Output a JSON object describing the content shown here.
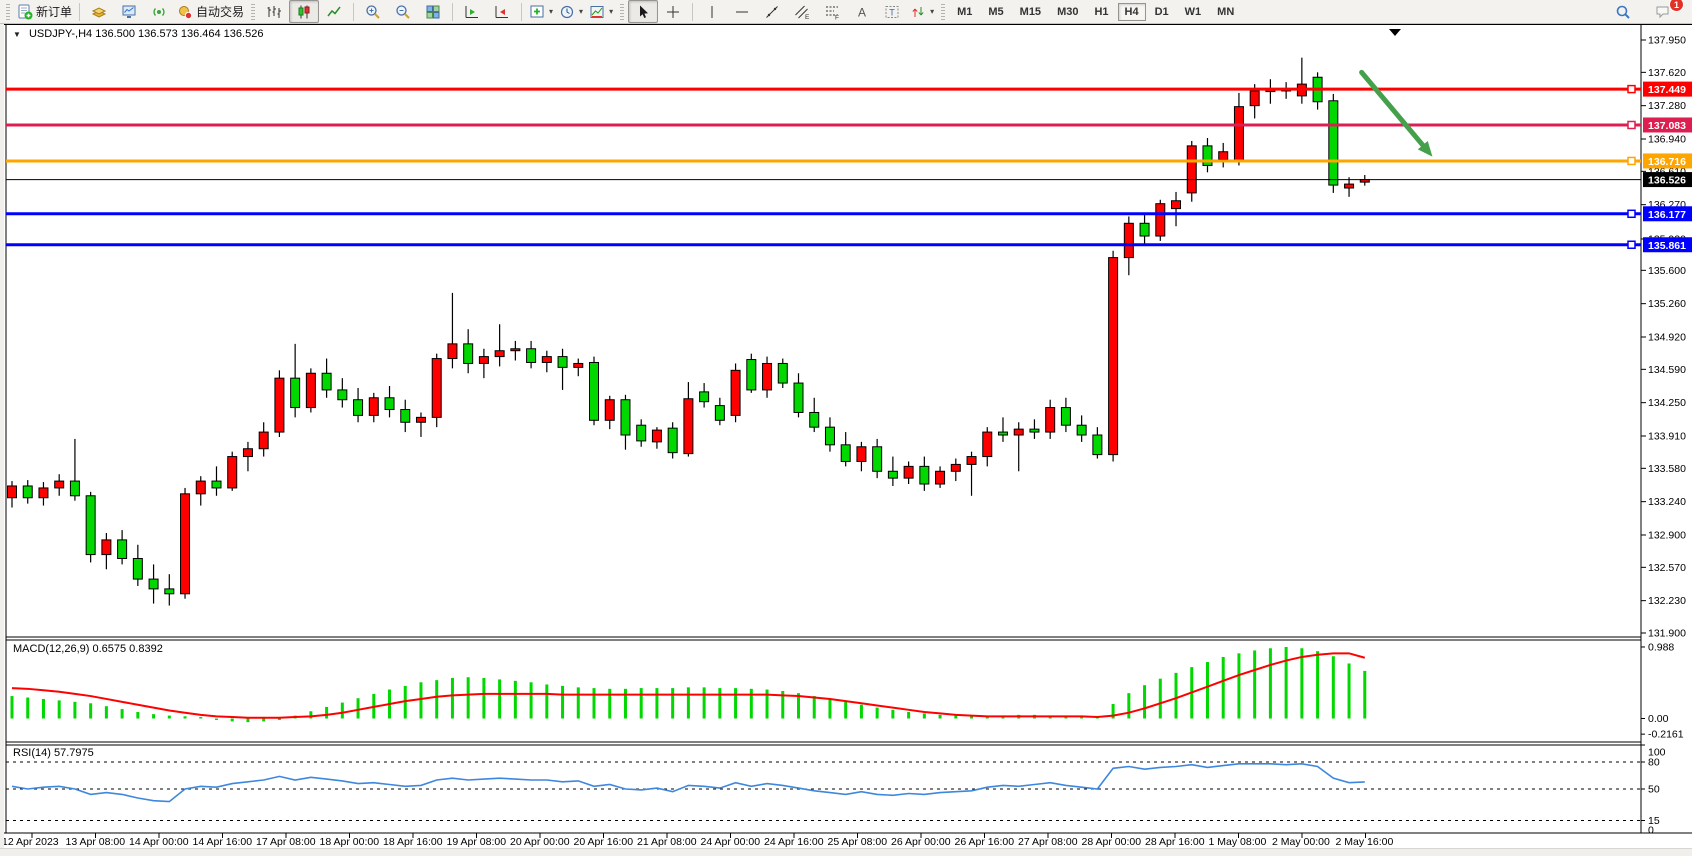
{
  "icons": {
    "collapse_caret": "▼",
    "dropdown_caret": "▾"
  },
  "toolbar": {
    "items": [
      {
        "type": "grip"
      },
      {
        "type": "btn",
        "name": "new-order-button",
        "icon": "new_order",
        "label": "新订单"
      },
      {
        "type": "sep"
      },
      {
        "type": "btn",
        "name": "chart-profiles-button",
        "icon": "gold_box"
      },
      {
        "type": "btn",
        "name": "market-watch-button",
        "icon": "market_watch"
      },
      {
        "type": "btn",
        "name": "signals-button",
        "icon": "signal"
      },
      {
        "type": "btn",
        "name": "autotrade-button",
        "icon": "autotrade",
        "label": "自动交易"
      },
      {
        "type": "grip"
      },
      {
        "type": "btn",
        "name": "bar-chart-button",
        "icon": "bar_chart"
      },
      {
        "type": "btn",
        "name": "candlestick-chart-button",
        "icon": "candles",
        "active": true
      },
      {
        "type": "btn",
        "name": "line-chart-button",
        "icon": "line_chart"
      },
      {
        "type": "sep"
      },
      {
        "type": "btn",
        "name": "zoom-in-button",
        "icon": "zoom_in"
      },
      {
        "type": "btn",
        "name": "zoom-out-button",
        "icon": "zoom_out"
      },
      {
        "type": "btn",
        "name": "tile-windows-button",
        "icon": "tiles"
      },
      {
        "type": "sep"
      },
      {
        "type": "btn",
        "name": "auto-scroll-button",
        "icon": "autoscroll"
      },
      {
        "type": "btn",
        "name": "chart-shift-button",
        "icon": "chart_shift"
      },
      {
        "type": "sep"
      },
      {
        "type": "btn",
        "name": "new-chart-button",
        "icon": "add_chart",
        "dd": true
      },
      {
        "type": "btn",
        "name": "periods-button",
        "icon": "clock",
        "dd": true
      },
      {
        "type": "btn",
        "name": "templates-button",
        "icon": "template",
        "dd": true
      },
      {
        "type": "grip"
      },
      {
        "type": "btn",
        "name": "cursor-button",
        "icon": "cursor",
        "active": true
      },
      {
        "type": "btn",
        "name": "crosshair-button",
        "icon": "crosshair"
      },
      {
        "type": "sep"
      },
      {
        "type": "btn",
        "name": "vertical-line-button",
        "icon": "vline"
      },
      {
        "type": "btn",
        "name": "horizontal-line-button",
        "icon": "hline"
      },
      {
        "type": "btn",
        "name": "trendline-button",
        "icon": "tline"
      },
      {
        "type": "btn",
        "name": "equidistant-channel-button",
        "icon": "channel"
      },
      {
        "type": "btn",
        "name": "fibonacci-button",
        "icon": "fibo"
      },
      {
        "type": "btn",
        "name": "text-button",
        "icon": "text_a"
      },
      {
        "type": "btn",
        "name": "text-label-button",
        "icon": "text_t"
      },
      {
        "type": "btn",
        "name": "arrows-button",
        "icon": "arrows",
        "dd": true
      },
      {
        "type": "grip"
      }
    ],
    "timeframes": {
      "items": [
        "M1",
        "M5",
        "M15",
        "M30",
        "H1",
        "H4",
        "D1",
        "W1",
        "MN"
      ],
      "active": "H4"
    },
    "notifications_badge": "1"
  },
  "chart": {
    "symbol_period": "USDJPY-,H4",
    "ohlc_text": "136.500 136.573 136.464 136.526",
    "shift_marker_visible": true,
    "hlines": [
      {
        "price": 137.449,
        "label": "137.449",
        "color": "#FF0000",
        "width": 3
      },
      {
        "price": 137.083,
        "label": "137.083",
        "color": "#DC1E50",
        "width": 3
      },
      {
        "price": 136.716,
        "label": "136.716",
        "color": "#FFA500",
        "width": 3
      },
      {
        "price": 136.526,
        "label": "136.526",
        "color": "#000000",
        "width": 1,
        "is_price_line": true
      },
      {
        "price": 136.177,
        "label": "136.177",
        "color": "#0000FF",
        "width": 3
      },
      {
        "price": 135.861,
        "label": "135.861",
        "color": "#0000FF",
        "width": 3
      }
    ],
    "annotations": [
      {
        "type": "arrow",
        "color": "#44A04A",
        "width": 5,
        "from": {
          "bar": 85.8,
          "price": 137.62
        },
        "to": {
          "bar": 90.3,
          "price": 136.76
        }
      }
    ]
  },
  "chart_data": {
    "type": "candlestick",
    "symbol": "USDJPY-",
    "period": "H4",
    "current": {
      "open": "136.500",
      "high": "136.573",
      "low": "136.464",
      "close": "136.526"
    },
    "bull_color": "#FF0000",
    "bear_color": "#00D800",
    "ylim": [
      131.9,
      137.95
    ],
    "grid": false,
    "price_axis_ticks": [
      "137.950",
      "137.620",
      "137.280",
      "136.940",
      "136.610",
      "136.270",
      "135.920",
      "135.600",
      "135.260",
      "134.920",
      "134.590",
      "134.250",
      "133.910",
      "133.580",
      "133.240",
      "132.900",
      "132.570",
      "132.230",
      "131.900"
    ],
    "time_axis_labels": [
      "12 Apr 2023",
      "13 Apr 08:00",
      "14 Apr 00:00",
      "14 Apr 16:00",
      "17 Apr 08:00",
      "18 Apr 00:00",
      "18 Apr 16:00",
      "19 Apr 08:00",
      "20 Apr 00:00",
      "20 Apr 16:00",
      "21 Apr 08:00",
      "24 Apr 00:00",
      "24 Apr 16:00",
      "25 Apr 08:00",
      "26 Apr 00:00",
      "26 Apr 16:00",
      "27 Apr 08:00",
      "28 Apr 00:00",
      "28 Apr 16:00",
      "1 May 08:00",
      "2 May 00:00",
      "2 May 16:00"
    ],
    "candles": [
      [
        133.28,
        133.45,
        133.18,
        133.4
      ],
      [
        133.4,
        133.46,
        133.22,
        133.28
      ],
      [
        133.28,
        133.44,
        133.2,
        133.38
      ],
      [
        133.38,
        133.52,
        133.3,
        133.45
      ],
      [
        133.45,
        133.88,
        133.25,
        133.3
      ],
      [
        133.3,
        133.34,
        132.62,
        132.7
      ],
      [
        132.7,
        132.92,
        132.55,
        132.85
      ],
      [
        132.85,
        132.95,
        132.6,
        132.66
      ],
      [
        132.66,
        132.8,
        132.38,
        132.45
      ],
      [
        132.45,
        132.6,
        132.2,
        132.35
      ],
      [
        132.35,
        132.5,
        132.18,
        132.3
      ],
      [
        132.3,
        133.38,
        132.25,
        133.32
      ],
      [
        133.32,
        133.5,
        133.2,
        133.45
      ],
      [
        133.45,
        133.6,
        133.3,
        133.38
      ],
      [
        133.38,
        133.75,
        133.35,
        133.7
      ],
      [
        133.7,
        133.85,
        133.55,
        133.78
      ],
      [
        133.78,
        134.05,
        133.7,
        133.95
      ],
      [
        133.95,
        134.58,
        133.9,
        134.5
      ],
      [
        134.5,
        134.85,
        134.1,
        134.2
      ],
      [
        134.2,
        134.6,
        134.15,
        134.55
      ],
      [
        134.55,
        134.7,
        134.3,
        134.38
      ],
      [
        134.38,
        134.5,
        134.2,
        134.28
      ],
      [
        134.28,
        134.4,
        134.05,
        134.12
      ],
      [
        134.12,
        134.35,
        134.05,
        134.3
      ],
      [
        134.3,
        134.42,
        134.1,
        134.18
      ],
      [
        134.18,
        134.28,
        133.95,
        134.05
      ],
      [
        134.05,
        134.15,
        133.9,
        134.1
      ],
      [
        134.1,
        134.75,
        134.0,
        134.7
      ],
      [
        134.7,
        135.37,
        134.6,
        134.85
      ],
      [
        134.85,
        135.0,
        134.55,
        134.65
      ],
      [
        134.65,
        134.8,
        134.5,
        134.72
      ],
      [
        134.72,
        135.05,
        134.62,
        134.78
      ],
      [
        134.78,
        134.88,
        134.68,
        134.8
      ],
      [
        134.8,
        134.88,
        134.6,
        134.66
      ],
      [
        134.66,
        134.78,
        134.56,
        134.72
      ],
      [
        134.72,
        134.8,
        134.38,
        134.61
      ],
      [
        134.61,
        134.7,
        134.52,
        134.65
      ],
      [
        134.66,
        134.72,
        134.02,
        134.07
      ],
      [
        134.07,
        134.32,
        133.98,
        134.28
      ],
      [
        134.28,
        134.33,
        133.77,
        133.92
      ],
      [
        134.02,
        134.08,
        133.8,
        133.86
      ],
      [
        133.85,
        134.0,
        133.78,
        133.97
      ],
      [
        133.99,
        134.05,
        133.68,
        133.74
      ],
      [
        133.73,
        134.46,
        133.7,
        134.29
      ],
      [
        134.36,
        134.45,
        134.2,
        134.26
      ],
      [
        134.22,
        134.3,
        134.02,
        134.07
      ],
      [
        134.12,
        134.65,
        134.05,
        134.58
      ],
      [
        134.69,
        134.75,
        134.35,
        134.38
      ],
      [
        134.38,
        134.72,
        134.3,
        134.65
      ],
      [
        134.65,
        134.7,
        134.4,
        134.45
      ],
      [
        134.45,
        134.55,
        134.1,
        134.15
      ],
      [
        134.15,
        134.3,
        133.95,
        134.0
      ],
      [
        134.0,
        134.1,
        133.75,
        133.82
      ],
      [
        133.82,
        133.95,
        133.6,
        133.65
      ],
      [
        133.65,
        133.85,
        133.55,
        133.8
      ],
      [
        133.8,
        133.88,
        133.48,
        133.55
      ],
      [
        133.55,
        133.7,
        133.4,
        133.48
      ],
      [
        133.48,
        133.65,
        133.42,
        133.6
      ],
      [
        133.6,
        133.7,
        133.35,
        133.42
      ],
      [
        133.42,
        133.6,
        133.38,
        133.55
      ],
      [
        133.55,
        133.68,
        133.45,
        133.62
      ],
      [
        133.62,
        133.75,
        133.3,
        133.7
      ],
      [
        133.7,
        134.0,
        133.6,
        133.95
      ],
      [
        133.95,
        134.1,
        133.85,
        133.92
      ],
      [
        133.92,
        134.05,
        133.55,
        133.98
      ],
      [
        133.98,
        134.08,
        133.88,
        133.95
      ],
      [
        133.95,
        134.28,
        133.88,
        134.2
      ],
      [
        134.2,
        134.3,
        133.95,
        134.02
      ],
      [
        134.02,
        134.12,
        133.85,
        133.92
      ],
      [
        133.92,
        134.0,
        133.68,
        133.72
      ],
      [
        133.72,
        135.8,
        133.65,
        135.73
      ],
      [
        135.73,
        136.15,
        135.55,
        136.08
      ],
      [
        136.08,
        136.18,
        135.85,
        135.95
      ],
      [
        135.95,
        136.32,
        135.9,
        136.28
      ],
      [
        136.23,
        136.4,
        136.05,
        136.31
      ],
      [
        136.39,
        136.92,
        136.3,
        136.87
      ],
      [
        136.87,
        136.95,
        136.6,
        136.67
      ],
      [
        136.73,
        136.9,
        136.65,
        136.81
      ],
      [
        136.72,
        137.41,
        136.67,
        137.27
      ],
      [
        137.28,
        137.5,
        137.15,
        137.43
      ],
      [
        137.43,
        137.55,
        137.3,
        137.44
      ],
      [
        137.45,
        137.52,
        137.35,
        137.43
      ],
      [
        137.38,
        137.77,
        137.3,
        137.5
      ],
      [
        137.57,
        137.62,
        137.24,
        137.32
      ],
      [
        137.33,
        137.4,
        136.39,
        136.47
      ],
      [
        136.44,
        136.55,
        136.35,
        136.48
      ],
      [
        136.5,
        136.573,
        136.464,
        136.526
      ]
    ],
    "indicators": [
      {
        "name": "MACD(12,26,9)",
        "values_text": "0.6575 0.8392",
        "histogram_color": "#00D800",
        "signal_color": "#FF0000",
        "axis_labels": [
          {
            "value": 0.988,
            "label": "0.988"
          },
          {
            "value": 0,
            "label": "0.00"
          },
          {
            "value": -0.2161,
            "label": "-0.2161"
          }
        ],
        "histogram": [
          0.31,
          0.29,
          0.27,
          0.25,
          0.23,
          0.21,
          0.17,
          0.13,
          0.09,
          0.06,
          0.04,
          0.03,
          0.02,
          -0.02,
          -0.04,
          -0.05,
          -0.04,
          -0.02,
          0.04,
          0.1,
          0.16,
          0.22,
          0.28,
          0.34,
          0.4,
          0.45,
          0.5,
          0.53,
          0.56,
          0.57,
          0.56,
          0.54,
          0.52,
          0.5,
          0.47,
          0.45,
          0.43,
          0.42,
          0.41,
          0.41,
          0.42,
          0.42,
          0.42,
          0.43,
          0.43,
          0.42,
          0.42,
          0.41,
          0.4,
          0.38,
          0.35,
          0.31,
          0.27,
          0.23,
          0.19,
          0.15,
          0.12,
          0.09,
          0.07,
          0.05,
          0.04,
          0.03,
          0.03,
          0.04,
          0.05,
          0.05,
          0.04,
          0.03,
          0.03,
          0.02,
          0.2,
          0.35,
          0.46,
          0.55,
          0.63,
          0.71,
          0.78,
          0.85,
          0.9,
          0.94,
          0.97,
          0.988,
          0.97,
          0.93,
          0.86,
          0.76,
          0.6575
        ],
        "signal": [
          0.42,
          0.41,
          0.39,
          0.37,
          0.34,
          0.31,
          0.27,
          0.23,
          0.19,
          0.15,
          0.11,
          0.08,
          0.05,
          0.03,
          0.02,
          0.01,
          0.01,
          0.01,
          0.02,
          0.03,
          0.05,
          0.08,
          0.12,
          0.16,
          0.2,
          0.24,
          0.27,
          0.3,
          0.32,
          0.33,
          0.34,
          0.34,
          0.34,
          0.34,
          0.34,
          0.33,
          0.33,
          0.33,
          0.33,
          0.33,
          0.33,
          0.33,
          0.33,
          0.33,
          0.33,
          0.33,
          0.33,
          0.33,
          0.33,
          0.32,
          0.31,
          0.29,
          0.27,
          0.24,
          0.21,
          0.18,
          0.15,
          0.12,
          0.09,
          0.07,
          0.05,
          0.04,
          0.03,
          0.03,
          0.03,
          0.03,
          0.03,
          0.03,
          0.03,
          0.02,
          0.04,
          0.08,
          0.14,
          0.21,
          0.28,
          0.36,
          0.44,
          0.52,
          0.6,
          0.67,
          0.74,
          0.8,
          0.85,
          0.88,
          0.9,
          0.9,
          0.8392
        ]
      },
      {
        "name": "RSI(14)",
        "values_text": "57.7975",
        "line_color": "#3E87DE",
        "levels": [
          80,
          50,
          15
        ],
        "axis_labels": [
          {
            "value": 100,
            "label": "100"
          },
          {
            "value": 80,
            "label": "80"
          },
          {
            "value": 50,
            "label": "50"
          },
          {
            "value": 15,
            "label": "15"
          },
          {
            "value": 0,
            "label": "0"
          }
        ],
        "values": [
          53,
          50,
          52,
          53,
          50,
          44,
          46,
          44,
          40,
          37,
          36,
          50,
          53,
          52,
          56,
          58,
          60,
          64,
          60,
          63,
          61,
          59,
          56,
          57,
          55,
          53,
          54,
          60,
          62,
          60,
          61,
          62,
          61,
          60,
          60,
          58,
          59,
          53,
          55,
          50,
          49,
          51,
          47,
          54,
          53,
          51,
          57,
          53,
          56,
          54,
          51,
          48,
          46,
          44,
          47,
          44,
          43,
          45,
          44,
          46,
          47,
          48,
          52,
          54,
          53,
          55,
          57,
          54,
          52,
          50,
          73,
          75,
          72,
          74,
          75,
          77,
          74,
          76,
          78,
          78,
          78,
          77,
          78,
          75,
          62,
          57,
          57.8
        ]
      }
    ]
  }
}
